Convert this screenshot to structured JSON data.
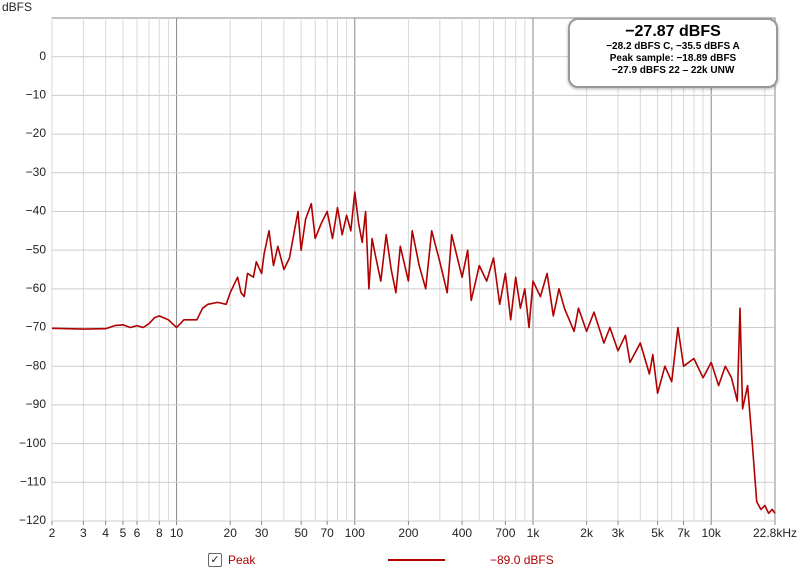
{
  "chart_data": {
    "type": "line",
    "y_axis_label": "dBFS",
    "xscale": "log",
    "xlim": [
      2,
      22800
    ],
    "ylim": [
      -120,
      10
    ],
    "xticks": [
      2,
      3,
      4,
      5,
      6,
      8,
      10,
      20,
      30,
      50,
      70,
      100,
      200,
      400,
      700,
      {
        "value": 1000,
        "label": "1k"
      },
      {
        "value": 2000,
        "label": "2k"
      },
      {
        "value": 3000,
        "label": "3k"
      },
      {
        "value": 5000,
        "label": "5k"
      },
      {
        "value": 7000,
        "label": "7k"
      },
      {
        "value": 10000,
        "label": "10k"
      },
      {
        "value": 22800,
        "label": "22.8kHz"
      }
    ],
    "xgrid": [
      2,
      3,
      4,
      5,
      6,
      7,
      8,
      9,
      10,
      20,
      30,
      40,
      50,
      60,
      70,
      80,
      90,
      100,
      200,
      300,
      400,
      500,
      600,
      700,
      800,
      900,
      1000,
      2000,
      3000,
      4000,
      5000,
      6000,
      7000,
      8000,
      9000,
      10000,
      20000
    ],
    "xgrid_major": [
      10,
      100,
      1000,
      10000
    ],
    "yticks": [
      0,
      {
        "value": -10,
        "label": "−10"
      },
      {
        "value": -20,
        "label": "−20"
      },
      {
        "value": -30,
        "label": "−30"
      },
      {
        "value": -40,
        "label": "−40"
      },
      {
        "value": -50,
        "label": "−50"
      },
      {
        "value": -60,
        "label": "−60"
      },
      {
        "value": -70,
        "label": "−70"
      },
      {
        "value": -80,
        "label": "−80"
      },
      {
        "value": -90,
        "label": "−90"
      },
      {
        "value": -100,
        "label": "−100"
      },
      {
        "value": -110,
        "label": "−110"
      },
      {
        "value": -120,
        "label": "−120"
      }
    ],
    "grid": true,
    "x": [
      2,
      3,
      4,
      4.5,
      5,
      5.5,
      6,
      6.5,
      7,
      7.5,
      8,
      9,
      10,
      11,
      12,
      13,
      14,
      15,
      17,
      19,
      20,
      22,
      23,
      24,
      25,
      27,
      28,
      30,
      31,
      33,
      35,
      37,
      40,
      43,
      45,
      48,
      50,
      53,
      57,
      60,
      65,
      70,
      75,
      80,
      85,
      90,
      95,
      100,
      105,
      110,
      115,
      120,
      125,
      130,
      140,
      150,
      160,
      170,
      180,
      200,
      210,
      230,
      250,
      270,
      300,
      330,
      350,
      400,
      430,
      450,
      500,
      550,
      600,
      650,
      700,
      750,
      800,
      850,
      900,
      950,
      1000,
      1100,
      1200,
      1300,
      1400,
      1500,
      1700,
      1800,
      2000,
      2200,
      2500,
      2700,
      3000,
      3300,
      3500,
      4000,
      4500,
      4700,
      5000,
      5500,
      6000,
      6500,
      7000,
      8000,
      9000,
      10000,
      11000,
      12000,
      13000,
      14000,
      14500,
      15000,
      16000,
      17000,
      18000,
      19000,
      20000,
      21000,
      22000,
      22800
    ],
    "series": [
      {
        "name": "Peak",
        "color": "#b00000",
        "values": [
          -70.2,
          -70.4,
          -70.3,
          -69.5,
          -69.3,
          -70,
          -69.5,
          -70,
          -69,
          -67.5,
          -67,
          -68,
          -70,
          -68,
          -68,
          -68,
          -65,
          -64,
          -63.5,
          -64,
          -61,
          -57,
          -61,
          -62,
          -56,
          -57,
          -53,
          -56,
          -51,
          -45,
          -54,
          -49,
          -55,
          -52,
          -47,
          -40,
          -50,
          -42,
          -38,
          -47,
          -43,
          -40,
          -47,
          -39,
          -46,
          -41,
          -45,
          -35,
          -43,
          -48,
          -40,
          -60,
          -47,
          -51,
          -58,
          -46,
          -55,
          -61,
          -49,
          -58,
          -45,
          -54,
          -60,
          -45,
          -53,
          -61,
          -46,
          -57,
          -50,
          -63,
          -54,
          -58,
          -52,
          -64,
          -56,
          -68,
          -57,
          -65,
          -60,
          -70,
          -58,
          -62,
          -56,
          -67,
          -60,
          -65,
          -71,
          -65,
          -71,
          -66,
          -74,
          -70,
          -76,
          -72,
          -79,
          -74,
          -82,
          -77,
          -87,
          -80,
          -84,
          -70,
          -80,
          -78,
          -83,
          -79,
          -85,
          -80,
          -83,
          -89,
          -65,
          -91,
          -85,
          -100,
          -115,
          -117,
          -116,
          -118,
          -117,
          -118
        ]
      }
    ],
    "legend_readout": "−89.0 dBFS",
    "info": {
      "level": "−27.87 dBFS",
      "weighted": "−28.2 dBFS C, −35.5 dBFS A",
      "peak_sample": "Peak sample: −18.89 dBFS",
      "band": "−27.9 dBFS 22 – 22k UNW"
    }
  }
}
